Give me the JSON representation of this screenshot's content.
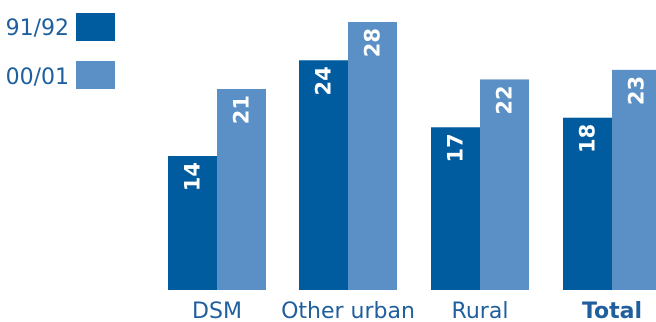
{
  "chart_data": {
    "type": "bar",
    "categories": [
      "DSM",
      "Other urban",
      "Rural",
      "Total"
    ],
    "emphasized_category": "Total",
    "series": [
      {
        "name": "91/92",
        "color": "#005b9f",
        "values": [
          14,
          24,
          17,
          18
        ]
      },
      {
        "name": "00/01",
        "color": "#5b90c6",
        "values": [
          21,
          28,
          22,
          23
        ]
      }
    ],
    "legend_position": "top-left",
    "value_labels": "inside-top-rotated",
    "ylim": [
      0,
      30
    ],
    "grid": false
  }
}
